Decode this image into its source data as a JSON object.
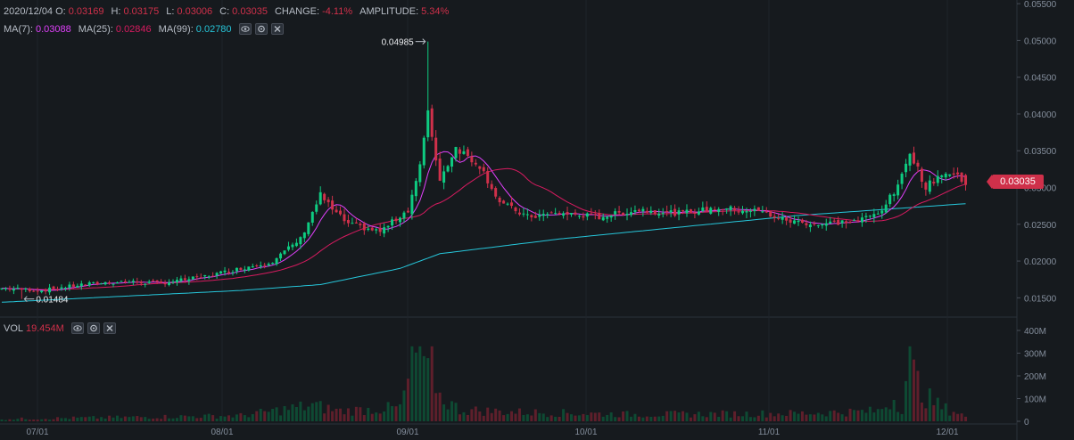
{
  "ohlc": {
    "date": "2020/12/04",
    "o_label": "O:",
    "o": "0.03169",
    "h_label": "H:",
    "h": "0.03175",
    "l_label": "L:",
    "l": "0.03006",
    "c_label": "C:",
    "c": "0.03035",
    "change_label": "CHANGE:",
    "change": "-4.11%",
    "amplitude_label": "AMPLITUDE:",
    "amplitude": "5.34%"
  },
  "ma": {
    "ma7_label": "MA(7):",
    "ma7": "0.03088",
    "ma25_label": "MA(25):",
    "ma25": "0.02846",
    "ma99_label": "MA(99):",
    "ma99": "0.02780"
  },
  "vol": {
    "label": "VOL",
    "value": "19.454M"
  },
  "current_price": "0.03035",
  "icons": [
    "eye-icon",
    "settings-icon",
    "close-icon"
  ],
  "colors": {
    "up": "#0ecb81",
    "down": "#cf304a",
    "ma7": "#e040fb",
    "ma25": "#d81b60",
    "ma99": "#26c6da",
    "bg": "#161a1e"
  },
  "chart_data": [
    {
      "type": "candlestick",
      "price_axis_ticks": [
        "0.01500",
        "0.02000",
        "0.02500",
        "0.03000",
        "0.03500",
        "0.04000",
        "0.04500",
        "0.05000",
        "0.05500"
      ],
      "ylim": [
        0.0125,
        0.0555
      ],
      "x_ticks": [
        "07/01",
        "08/01",
        "09/01",
        "10/01",
        "11/01",
        "12/01"
      ],
      "annotations": [
        {
          "text": "0.04985",
          "value": 0.04985,
          "kind": "high"
        },
        {
          "text": "0.01484",
          "value": 0.01484,
          "kind": "low"
        }
      ],
      "close_anchors": [
        [
          0,
          0.0163
        ],
        [
          10,
          0.016
        ],
        [
          20,
          0.0168
        ],
        [
          30,
          0.0172
        ],
        [
          40,
          0.017
        ],
        [
          50,
          0.0178
        ],
        [
          60,
          0.019
        ],
        [
          68,
          0.02
        ],
        [
          75,
          0.023
        ],
        [
          80,
          0.029
        ],
        [
          83,
          0.027
        ],
        [
          87,
          0.025
        ],
        [
          95,
          0.024
        ],
        [
          102,
          0.027
        ],
        [
          105,
          0.033
        ],
        [
          107,
          0.04
        ],
        [
          110,
          0.031
        ],
        [
          114,
          0.0355
        ],
        [
          120,
          0.033
        ],
        [
          125,
          0.028
        ],
        [
          132,
          0.026
        ],
        [
          140,
          0.0265
        ],
        [
          150,
          0.026
        ],
        [
          160,
          0.027
        ],
        [
          170,
          0.0265
        ],
        [
          180,
          0.0272
        ],
        [
          190,
          0.0268
        ],
        [
          197,
          0.0255
        ],
        [
          205,
          0.025
        ],
        [
          215,
          0.0255
        ],
        [
          220,
          0.0265
        ],
        [
          225,
          0.03
        ],
        [
          228,
          0.035
        ],
        [
          232,
          0.03
        ],
        [
          236,
          0.032
        ],
        [
          240,
          0.0316
        ],
        [
          242,
          0.03035
        ]
      ],
      "ma99_anchors": [
        [
          0,
          0.0144
        ],
        [
          60,
          0.016
        ],
        [
          80,
          0.0168
        ],
        [
          100,
          0.019
        ],
        [
          110,
          0.021
        ],
        [
          140,
          0.023
        ],
        [
          200,
          0.0262
        ],
        [
          242,
          0.0278
        ]
      ]
    },
    {
      "type": "bar",
      "name": "volume",
      "volume_axis_ticks": [
        "0",
        "100M",
        "200M",
        "300M",
        "400M"
      ],
      "ylim": [
        0,
        400
      ],
      "unit": "M",
      "volume_anchors": [
        [
          0,
          10
        ],
        [
          60,
          25
        ],
        [
          78,
          70
        ],
        [
          85,
          45
        ],
        [
          100,
          60
        ],
        [
          104,
          290
        ],
        [
          105,
          320
        ],
        [
          106,
          200
        ],
        [
          108,
          250
        ],
        [
          110,
          110
        ],
        [
          115,
          50
        ],
        [
          130,
          40
        ],
        [
          160,
          30
        ],
        [
          200,
          35
        ],
        [
          220,
          45
        ],
        [
          224,
          100
        ],
        [
          226,
          60
        ],
        [
          228,
          320
        ],
        [
          229,
          200
        ],
        [
          230,
          170
        ],
        [
          232,
          110
        ],
        [
          236,
          60
        ],
        [
          240,
          40
        ],
        [
          242,
          20
        ]
      ]
    }
  ]
}
